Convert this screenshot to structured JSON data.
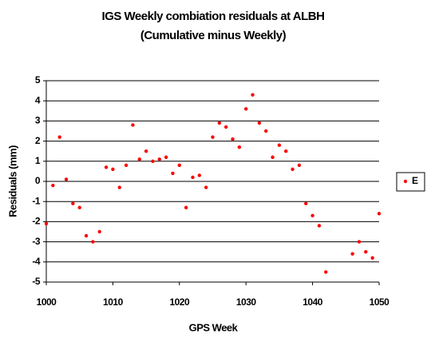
{
  "chart_data": {
    "type": "scatter",
    "title": "IGS Weekly combiation residuals at ALBH",
    "subtitle": "(Cumulative minus Weekly)",
    "x_label": "GPS Week",
    "y_label": "Residuals (mm)",
    "xlim": [
      1000,
      1050
    ],
    "xticks": [
      1000,
      1010,
      1020,
      1030,
      1040,
      1050
    ],
    "ylim": [
      -5,
      5
    ],
    "yticks": [
      -5,
      -4,
      -3,
      -2,
      -1,
      0,
      1,
      2,
      3,
      4,
      5
    ],
    "grid": true,
    "legend": "right",
    "series": [
      {
        "name": "E",
        "color": "#ff0000",
        "x": [
          1000,
          1001,
          1002,
          1003,
          1004,
          1005,
          1006,
          1007,
          1008,
          1009,
          1010,
          1011,
          1012,
          1013,
          1014,
          1015,
          1016,
          1017,
          1018,
          1019,
          1020,
          1021,
          1022,
          1023,
          1024,
          1025,
          1026,
          1027,
          1028,
          1029,
          1030,
          1031,
          1032,
          1033,
          1034,
          1035,
          1036,
          1037,
          1038,
          1039,
          1040,
          1041,
          1042,
          1046,
          1047,
          1048,
          1049,
          1050
        ],
        "values": [
          -2.1,
          -0.2,
          2.2,
          0.1,
          -1.1,
          -1.3,
          -2.7,
          -3.0,
          -2.5,
          0.7,
          0.6,
          -0.3,
          0.8,
          2.8,
          1.1,
          1.5,
          1.0,
          1.1,
          1.2,
          0.4,
          0.8,
          -1.3,
          0.2,
          0.3,
          -0.3,
          2.2,
          2.9,
          2.7,
          2.1,
          1.7,
          3.6,
          4.3,
          2.9,
          2.5,
          1.2,
          1.8,
          1.5,
          0.6,
          0.8,
          -1.1,
          -1.7,
          -2.2,
          -4.5,
          -3.6,
          -3.0,
          -3.5,
          -3.8,
          -1.6
        ]
      }
    ]
  }
}
